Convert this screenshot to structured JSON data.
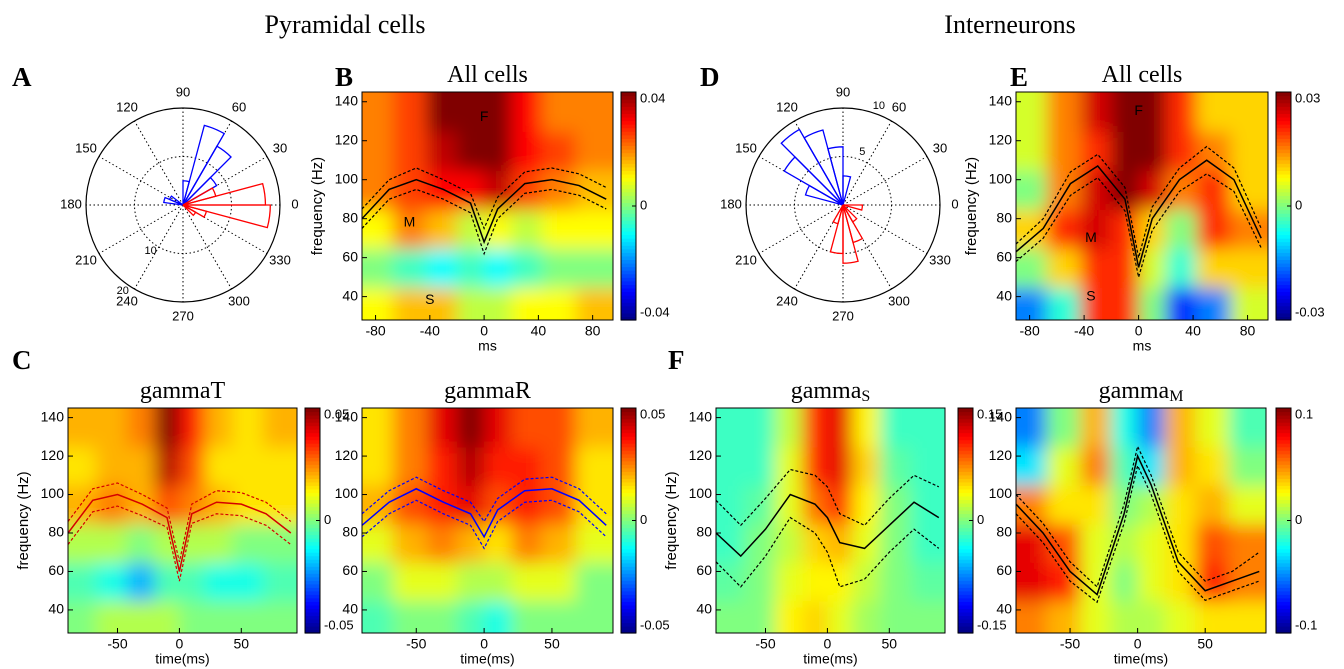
{
  "section_titles": [
    "Pyramidal cells",
    "Interneurons"
  ],
  "chart_data": [
    {
      "type": "polar",
      "panel": "A",
      "rlim": [
        0,
        20
      ],
      "rticks": [
        10,
        20
      ],
      "thetaticks": [
        0,
        30,
        60,
        90,
        120,
        150,
        180,
        210,
        240,
        270,
        300,
        330
      ],
      "series": [
        {
          "color": "#0000ff",
          "angles": [
            37.5,
            52.5,
            67.5,
            82.5,
            150,
            165
          ],
          "values": [
            8,
            14,
            17,
            5,
            3,
            4
          ]
        },
        {
          "color": "#ff0000",
          "angles": [
            -37.5,
            -22.5,
            -7.5,
            7.5,
            22.5
          ],
          "values": [
            3,
            5,
            18,
            17,
            7
          ]
        }
      ]
    },
    {
      "type": "heatmap",
      "panel": "B",
      "title": "All cells",
      "xlabel": "ms",
      "ylabel": "frequency (Hz)",
      "xlim": [
        -90,
        95
      ],
      "ylim": [
        28,
        145
      ],
      "xticks": [
        -80,
        -40,
        0,
        40,
        80
      ],
      "yticks": [
        40,
        60,
        80,
        100,
        120,
        140
      ],
      "clim": [
        -0.04,
        0.04
      ],
      "cticks": [
        -0.04,
        0,
        0.04
      ],
      "annotations": [
        "F",
        "M",
        "S"
      ],
      "grid_x": [
        -80,
        -55,
        -30,
        -10,
        10,
        30,
        55,
        80
      ],
      "grid_y": [
        35,
        55,
        75,
        95,
        115,
        135
      ],
      "z": [
        [
          0.01,
          0.015,
          0.015,
          0.005,
          0.005,
          0.01,
          0.01,
          0.015
        ],
        [
          0,
          -0.005,
          -0.01,
          -0.005,
          -0.01,
          -0.005,
          0,
          0
        ],
        [
          0.01,
          0.02,
          0.015,
          0.005,
          0.01,
          0.005,
          0.01,
          0.01
        ],
        [
          0.02,
          0.025,
          0.03,
          0.03,
          0.035,
          0.025,
          0.02,
          0.015
        ],
        [
          0.02,
          0.025,
          0.035,
          0.04,
          0.04,
          0.03,
          0.025,
          0.02
        ],
        [
          0.02,
          0.025,
          0.04,
          0.045,
          0.045,
          0.03,
          0.02,
          0.02
        ]
      ],
      "x": [
        -90,
        -70,
        -50,
        -30,
        -10,
        0,
        10,
        30,
        50,
        70,
        90
      ],
      "series": [
        {
          "color": "#000000",
          "dash": false,
          "values": [
            80,
            95,
            100,
            95,
            88,
            68,
            85,
            98,
            100,
            97,
            90
          ]
        },
        {
          "color": "#000000",
          "dash": true,
          "values": [
            85,
            100,
            106,
            100,
            93,
            75,
            91,
            104,
            106,
            103,
            96
          ]
        },
        {
          "color": "#000000",
          "dash": true,
          "values": [
            75,
            90,
            95,
            90,
            83,
            62,
            80,
            93,
            95,
            92,
            85
          ]
        }
      ]
    },
    {
      "type": "polar",
      "panel": "D",
      "rlim": [
        0,
        10
      ],
      "rticks": [
        5,
        10
      ],
      "thetaticks": [
        0,
        30,
        60,
        90,
        120,
        150,
        180,
        210,
        240,
        270,
        300,
        330
      ],
      "series": [
        {
          "color": "#0000ff",
          "angles": [
            82.5,
            97.5,
            112.5,
            127.5,
            142.5,
            157.5
          ],
          "values": [
            3,
            6,
            8,
            9,
            7,
            4
          ]
        },
        {
          "color": "#ff0000",
          "angles": [
            -112.5,
            -97.5,
            -82.5,
            -67.5,
            -52.5,
            -7.5
          ],
          "values": [
            2,
            5,
            6,
            4,
            2,
            2
          ]
        }
      ]
    },
    {
      "type": "heatmap",
      "panel": "E",
      "title": "All cells",
      "xlabel": "ms",
      "ylabel": "frequency (Hz)",
      "xlim": [
        -90,
        95
      ],
      "ylim": [
        28,
        145
      ],
      "xticks": [
        -80,
        -40,
        0,
        40,
        80
      ],
      "yticks": [
        40,
        60,
        80,
        100,
        120,
        140
      ],
      "clim": [
        -0.03,
        0.03
      ],
      "cticks": [
        -0.03,
        0,
        0.03
      ],
      "annotations": [
        "F",
        "M",
        "S"
      ],
      "grid_x": [
        -80,
        -55,
        -30,
        -10,
        10,
        30,
        55,
        80
      ],
      "grid_y": [
        35,
        55,
        75,
        95,
        115,
        135
      ],
      "z": [
        [
          -0.015,
          -0.005,
          0.02,
          0.02,
          0,
          -0.02,
          -0.015,
          0.005
        ],
        [
          0,
          0.01,
          0.02,
          0.02,
          0.005,
          -0.005,
          0.01,
          0.01
        ],
        [
          0.01,
          0.02,
          0.025,
          0.02,
          0.01,
          0,
          0.02,
          0.015
        ],
        [
          0,
          0.015,
          0.025,
          0.03,
          0.025,
          0.015,
          0.02,
          0.01
        ],
        [
          0.005,
          0.015,
          0.02,
          0.035,
          0.035,
          0.02,
          0.015,
          0.01
        ],
        [
          0.005,
          0.015,
          0.025,
          0.035,
          0.035,
          0.02,
          0.01,
          0.01
        ]
      ],
      "x": [
        -90,
        -70,
        -50,
        -30,
        -10,
        0,
        10,
        30,
        50,
        70,
        90
      ],
      "series": [
        {
          "color": "#000000",
          "dash": false,
          "values": [
            63,
            75,
            98,
            107,
            90,
            55,
            80,
            100,
            110,
            100,
            70
          ]
        },
        {
          "color": "#000000",
          "dash": true,
          "values": [
            67,
            80,
            104,
            113,
            96,
            60,
            86,
            106,
            117,
            106,
            75
          ]
        },
        {
          "color": "#000000",
          "dash": true,
          "values": [
            58,
            70,
            92,
            101,
            84,
            50,
            74,
            94,
            103,
            94,
            65
          ]
        }
      ]
    },
    {
      "type": "heatmap",
      "panel": "C",
      "title": "gammaT",
      "xlabel": "time(ms)",
      "ylabel": "frequency (Hz)",
      "xlim": [
        -90,
        95
      ],
      "ylim": [
        28,
        145
      ],
      "xticks": [
        -50,
        0,
        50
      ],
      "yticks": [
        40,
        60,
        80,
        100,
        120,
        140
      ],
      "clim": [
        -0.05,
        0.05
      ],
      "cticks": [
        -0.05,
        0,
        0.05
      ],
      "grid_x": [
        -80,
        -55,
        -30,
        -10,
        10,
        30,
        55,
        80
      ],
      "grid_y": [
        35,
        55,
        75,
        95,
        115,
        135
      ],
      "z": [
        [
          0,
          0.005,
          0.005,
          0.005,
          0,
          0,
          0,
          0
        ],
        [
          -0.005,
          -0.01,
          -0.02,
          -0.005,
          -0.005,
          -0.01,
          -0.01,
          -0.005
        ],
        [
          0.005,
          0.005,
          0,
          0.005,
          0.005,
          0.005,
          0,
          0
        ],
        [
          0.02,
          0.025,
          0.02,
          0.03,
          0.025,
          0.02,
          0.015,
          0.015
        ],
        [
          0.015,
          0.02,
          0.02,
          0.045,
          0.03,
          0.015,
          0.015,
          0.015
        ],
        [
          0.02,
          0.02,
          0.025,
          0.05,
          0.035,
          0.02,
          0.015,
          0.02
        ]
      ],
      "x": [
        -90,
        -70,
        -50,
        -30,
        -10,
        0,
        10,
        30,
        50,
        70,
        90
      ],
      "series": [
        {
          "color": "#d40000",
          "dash": false,
          "values": [
            80,
            97,
            100,
            95,
            88,
            60,
            90,
            96,
            95,
            90,
            80
          ]
        },
        {
          "color": "#d40000",
          "dash": true,
          "values": [
            86,
            103,
            106,
            100,
            93,
            65,
            95,
            102,
            101,
            96,
            86
          ]
        },
        {
          "color": "#d40000",
          "dash": true,
          "values": [
            74,
            91,
            94,
            89,
            83,
            55,
            85,
            90,
            89,
            84,
            74
          ]
        }
      ]
    },
    {
      "type": "heatmap",
      "title": "gammaR",
      "xlabel": "time(ms)",
      "xlim": [
        -90,
        95
      ],
      "ylim": [
        28,
        145
      ],
      "xticks": [
        -50,
        0,
        50
      ],
      "yticks": [
        40,
        60,
        80,
        100,
        120,
        140
      ],
      "clim": [
        -0.05,
        0.05
      ],
      "cticks": [
        -0.05,
        0,
        0.05
      ],
      "grid_x": [
        -80,
        -55,
        -30,
        -10,
        10,
        30,
        55,
        80
      ],
      "grid_y": [
        35,
        55,
        75,
        95,
        115,
        135
      ],
      "z": [
        [
          -0.005,
          0,
          0,
          -0.005,
          -0.01,
          0,
          0,
          0
        ],
        [
          0,
          0.01,
          0.01,
          0.005,
          0.005,
          0.01,
          0.01,
          0
        ],
        [
          0.01,
          0.02,
          0.025,
          0.02,
          0.015,
          0.025,
          0.02,
          0.01
        ],
        [
          0.02,
          0.03,
          0.035,
          0.04,
          0.03,
          0.035,
          0.03,
          0.015
        ],
        [
          0.015,
          0.025,
          0.035,
          0.045,
          0.035,
          0.035,
          0.03,
          0.015
        ],
        [
          0.015,
          0.025,
          0.04,
          0.05,
          0.04,
          0.03,
          0.03,
          0.02
        ]
      ],
      "x": [
        -90,
        -70,
        -50,
        -30,
        -10,
        0,
        10,
        30,
        50,
        70,
        90
      ],
      "series": [
        {
          "color": "#0000ff",
          "dash": false,
          "values": [
            84,
            96,
            103,
            96,
            90,
            78,
            92,
            102,
            103,
            97,
            84
          ]
        },
        {
          "color": "#0000ff",
          "dash": true,
          "values": [
            90,
            102,
            109,
            102,
            96,
            86,
            98,
            108,
            109,
            103,
            90
          ]
        },
        {
          "color": "#0000ff",
          "dash": true,
          "values": [
            78,
            90,
            97,
            90,
            84,
            72,
            86,
            96,
            97,
            91,
            78
          ]
        }
      ]
    },
    {
      "type": "heatmap",
      "panel": "F",
      "title": "gamma",
      "title_subscript": "S",
      "xlabel": "time(ms)",
      "ylabel": "frequency (Hz)",
      "xlim": [
        -90,
        95
      ],
      "ylim": [
        28,
        145
      ],
      "xticks": [
        -50,
        0,
        50
      ],
      "yticks": [
        40,
        60,
        80,
        100,
        120,
        140
      ],
      "clim": [
        -0.15,
        0.15
      ],
      "cticks": [
        -0.15,
        0,
        0.15
      ],
      "grid_x": [
        -80,
        -55,
        -30,
        -10,
        10,
        30,
        55,
        80
      ],
      "grid_y": [
        35,
        55,
        75,
        95,
        115,
        135
      ],
      "z": [
        [
          0,
          0,
          0.04,
          0.05,
          0.03,
          0.01,
          0,
          0
        ],
        [
          -0.01,
          0,
          0.03,
          0.04,
          0.04,
          0.02,
          0,
          -0.01
        ],
        [
          -0.02,
          0,
          0.02,
          0.05,
          0.06,
          0.03,
          0,
          -0.02
        ],
        [
          -0.02,
          -0.01,
          0.03,
          0.08,
          0.1,
          0.04,
          0,
          -0.02
        ],
        [
          -0.02,
          -0.02,
          0.03,
          0.1,
          0.12,
          0.05,
          -0.01,
          -0.02
        ],
        [
          -0.02,
          -0.02,
          0.02,
          0.1,
          0.12,
          0.04,
          -0.02,
          -0.02
        ]
      ],
      "x": [
        -90,
        -70,
        -50,
        -30,
        -10,
        0,
        10,
        30,
        50,
        70,
        90
      ],
      "series": [
        {
          "color": "#000000",
          "dash": false,
          "values": [
            80,
            68,
            82,
            100,
            95,
            88,
            75,
            72,
            84,
            96,
            88
          ]
        },
        {
          "color": "#000000",
          "dash": true,
          "values": [
            97,
            84,
            98,
            113,
            110,
            104,
            90,
            84,
            98,
            110,
            104
          ]
        },
        {
          "color": "#000000",
          "dash": true,
          "values": [
            65,
            52,
            68,
            88,
            80,
            70,
            52,
            56,
            70,
            82,
            72
          ]
        }
      ]
    },
    {
      "type": "heatmap",
      "title": "gamma",
      "title_subscript": "M",
      "xlabel": "time(ms)",
      "xlim": [
        -90,
        95
      ],
      "ylim": [
        28,
        145
      ],
      "xticks": [
        -50,
        0,
        50
      ],
      "yticks": [
        40,
        60,
        80,
        100,
        120,
        140
      ],
      "clim": [
        -0.1,
        0.1
      ],
      "cticks": [
        -0.1,
        0,
        0.1
      ],
      "grid_x": [
        -80,
        -55,
        -30,
        -10,
        10,
        30,
        55,
        80
      ],
      "grid_y": [
        35,
        55,
        75,
        95,
        115,
        135
      ],
      "z": [
        [
          0.05,
          0.04,
          0.02,
          0.01,
          0.01,
          0.02,
          0.03,
          0.03
        ],
        [
          0.08,
          0.07,
          0.02,
          0,
          0.02,
          0.03,
          0.07,
          0.05
        ],
        [
          0.08,
          0.06,
          0.02,
          0.01,
          0.02,
          0.03,
          0.06,
          0.05
        ],
        [
          0.05,
          0.03,
          0.03,
          0,
          0.01,
          0.03,
          0.04,
          0.02
        ],
        [
          -0.03,
          0.02,
          0.05,
          -0.01,
          -0.03,
          0.04,
          0.03,
          0
        ],
        [
          -0.05,
          0,
          0.04,
          -0.02,
          -0.05,
          0.04,
          0.02,
          -0.01
        ]
      ],
      "x": [
        -90,
        -70,
        -50,
        -30,
        -10,
        0,
        10,
        30,
        50,
        70,
        90
      ],
      "series": [
        {
          "color": "#000000",
          "dash": false,
          "values": [
            95,
            80,
            60,
            48,
            90,
            120,
            105,
            65,
            50,
            55,
            60
          ]
        },
        {
          "color": "#000000",
          "dash": true,
          "values": [
            100,
            85,
            65,
            52,
            95,
            125,
            110,
            70,
            55,
            60,
            70
          ]
        },
        {
          "color": "#000000",
          "dash": true,
          "values": [
            90,
            75,
            55,
            44,
            85,
            115,
            100,
            60,
            45,
            50,
            55
          ]
        }
      ]
    }
  ]
}
